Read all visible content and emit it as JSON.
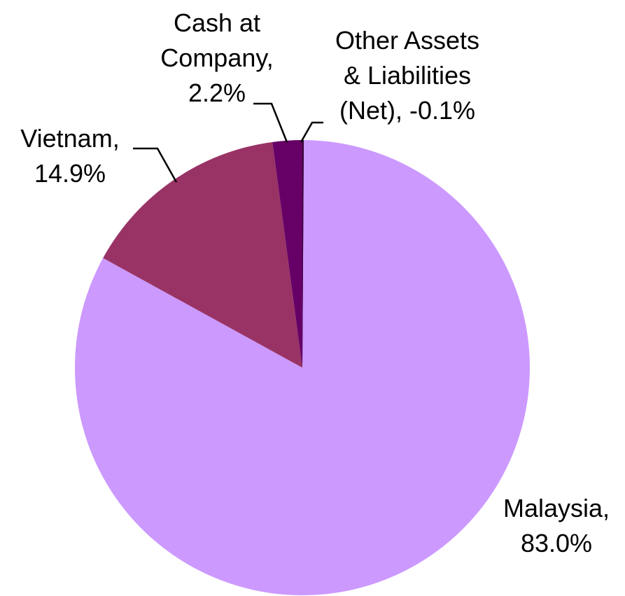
{
  "chart_data": {
    "type": "pie",
    "values": [
      83.0,
      14.9,
      2.2,
      -0.1
    ],
    "value_labels": [
      "Malaysia,\n83.0%",
      "Vietnam,\n14.9%",
      "Cash at\nCompany,\n2.2%",
      "Other Assets\n& Liabilities\n(Net), -0.1%"
    ],
    "colors": [
      "#cc99ff",
      "#993366",
      "#660066",
      "#330033"
    ]
  }
}
